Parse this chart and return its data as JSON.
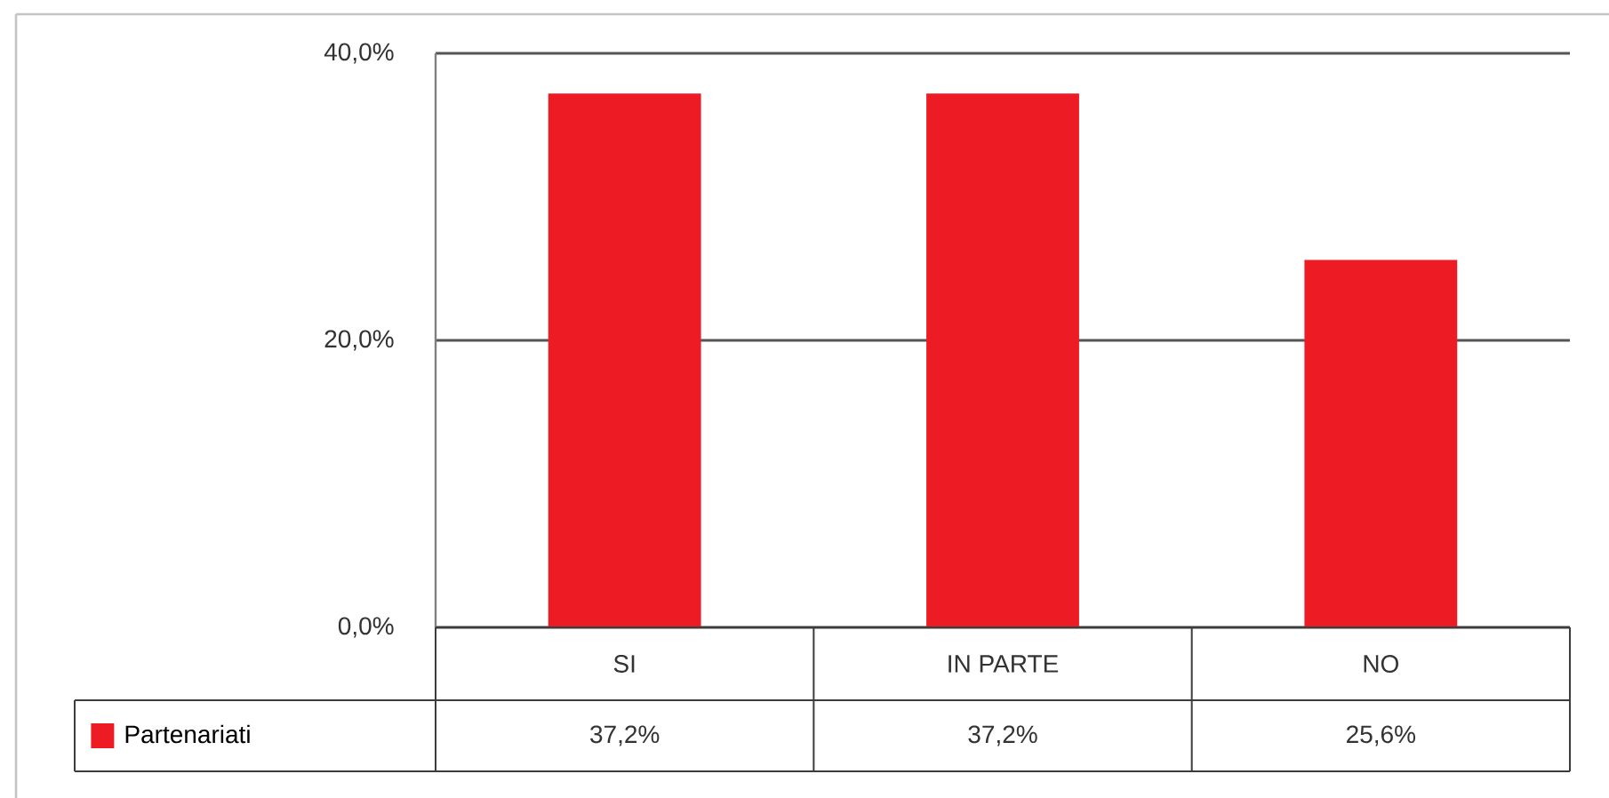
{
  "chart_data": {
    "type": "bar",
    "categories": [
      "SI",
      "IN PARTE",
      "NO"
    ],
    "series": [
      {
        "name": "Partenariati",
        "color": "#ed1c24",
        "values": [
          37.2,
          37.2,
          25.6
        ],
        "value_labels": [
          "37,2%",
          "37,2%",
          "25,6%"
        ]
      }
    ],
    "ylim": [
      0,
      40
    ],
    "yticks": [
      {
        "value": 0,
        "label": "0,0%"
      },
      {
        "value": 20,
        "label": "20,0%"
      },
      {
        "value": 40,
        "label": "40,0%"
      }
    ],
    "grid": "y",
    "legend": "bottom"
  }
}
